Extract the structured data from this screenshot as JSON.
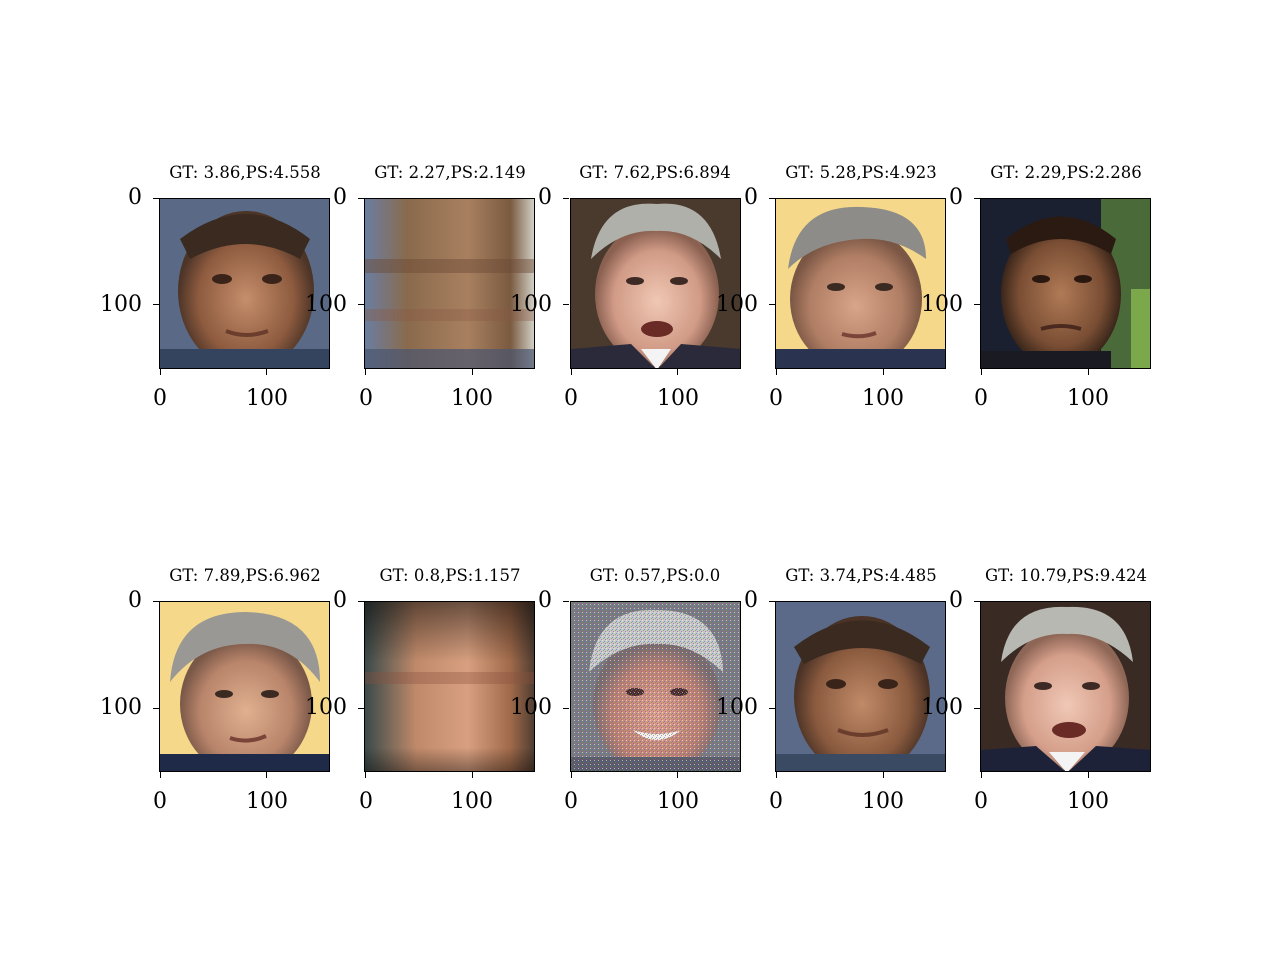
{
  "figure": {
    "panels": [
      {
        "title": "GT: 3.86,PS:4.558",
        "variant": "zidane-1",
        "y_ticks": [
          "0",
          "100"
        ],
        "x_ticks": [
          "0",
          "100"
        ]
      },
      {
        "title": "GT: 2.27,PS:2.149",
        "variant": "zidane-blur",
        "y_ticks": [
          "0",
          "100"
        ],
        "x_ticks": [
          "0",
          "100"
        ]
      },
      {
        "title": "GT: 7.62,PS:6.894",
        "variant": "djindjic-1",
        "y_ticks": [
          "0",
          "100"
        ],
        "x_ticks": [
          "0",
          "100"
        ]
      },
      {
        "title": "GT: 5.28,PS:4.923",
        "variant": "djindjic-yellow",
        "y_ticks": [
          "0",
          "100"
        ],
        "x_ticks": [
          "0",
          "100"
        ]
      },
      {
        "title": "GT: 2.29,PS:2.286",
        "variant": "zidane-2",
        "y_ticks": [
          "0",
          "100"
        ],
        "x_ticks": [
          "0",
          "100"
        ]
      },
      {
        "title": "GT: 7.89,PS:6.962",
        "variant": "djindjic-yellow-2",
        "y_ticks": [
          "0",
          "100"
        ],
        "x_ticks": [
          "0",
          "100"
        ]
      },
      {
        "title": "GT: 0.8,PS:1.157",
        "variant": "heavy-blur",
        "y_ticks": [
          "0",
          "100"
        ],
        "x_ticks": [
          "0",
          "100"
        ]
      },
      {
        "title": "GT: 0.57,PS:0.0",
        "variant": "noisy-smile",
        "y_ticks": [
          "0",
          "100"
        ],
        "x_ticks": [
          "0",
          "100"
        ]
      },
      {
        "title": "GT: 3.74,PS:4.485",
        "variant": "zidane-3",
        "y_ticks": [
          "0",
          "100"
        ],
        "x_ticks": [
          "0",
          "100"
        ]
      },
      {
        "title": "GT: 10.79,PS:9.424",
        "variant": "djindjic-2",
        "y_ticks": [
          "0",
          "100"
        ],
        "x_ticks": [
          "0",
          "100"
        ]
      }
    ]
  }
}
